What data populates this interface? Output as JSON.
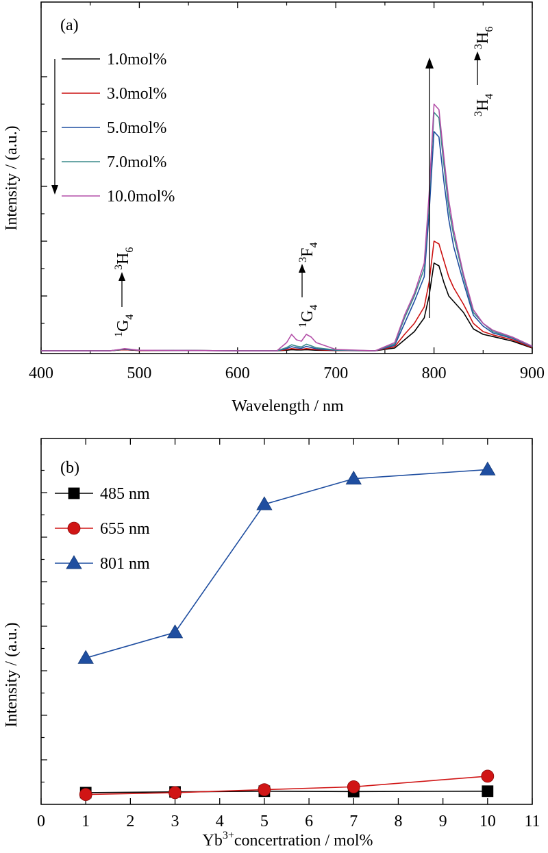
{
  "chart_data": [
    {
      "type": "line",
      "panel_label": "(a)",
      "xlabel": "Wavelength / nm",
      "ylabel": "Intensity / (a.u.)",
      "xlim": [
        400,
        900
      ],
      "xticks": [
        400,
        500,
        600,
        700,
        800,
        900
      ],
      "ylim": [
        0,
        1.0
      ],
      "y_tick_labels_shown": false,
      "legend_position": "top-left",
      "legend_arrow": "down",
      "series": [
        {
          "name": "1.0mol%",
          "color": "#000000",
          "x": [
            400,
            470,
            480,
            485,
            490,
            500,
            550,
            600,
            640,
            650,
            655,
            660,
            665,
            670,
            675,
            680,
            700,
            740,
            760,
            770,
            780,
            790,
            795,
            800,
            805,
            810,
            815,
            820,
            830,
            840,
            850,
            860,
            880,
            900
          ],
          "y": [
            0,
            0,
            0.003,
            0.004,
            0.003,
            0.001,
            0.001,
            0,
            0,
            0.002,
            0.004,
            0.003,
            0.003,
            0.004,
            0.003,
            0.002,
            0.001,
            0,
            0.01,
            0.04,
            0.07,
            0.12,
            0.2,
            0.32,
            0.31,
            0.25,
            0.2,
            0.18,
            0.14,
            0.08,
            0.06,
            0.052,
            0.035,
            0.01
          ]
        },
        {
          "name": "3.0mol%",
          "color": "#cc1111",
          "x": [
            400,
            470,
            480,
            485,
            490,
            500,
            550,
            600,
            640,
            650,
            655,
            660,
            665,
            670,
            675,
            680,
            700,
            740,
            760,
            770,
            780,
            790,
            795,
            800,
            805,
            810,
            815,
            820,
            830,
            840,
            850,
            860,
            880,
            900
          ],
          "y": [
            0,
            0,
            0.003,
            0.004,
            0.003,
            0.001,
            0.001,
            0,
            0,
            0.004,
            0.008,
            0.006,
            0.005,
            0.008,
            0.006,
            0.004,
            0.001,
            0,
            0.015,
            0.06,
            0.1,
            0.16,
            0.25,
            0.4,
            0.39,
            0.33,
            0.27,
            0.23,
            0.17,
            0.1,
            0.07,
            0.058,
            0.04,
            0.012
          ]
        },
        {
          "name": "5.0mol%",
          "color": "#1f4ea0",
          "x": [
            400,
            470,
            480,
            485,
            490,
            500,
            550,
            600,
            640,
            650,
            655,
            660,
            665,
            670,
            675,
            680,
            700,
            740,
            760,
            770,
            780,
            790,
            795,
            800,
            805,
            810,
            815,
            820,
            830,
            840,
            850,
            860,
            880,
            900
          ],
          "y": [
            0,
            0,
            0.004,
            0.006,
            0.004,
            0.002,
            0.001,
            0,
            0,
            0.008,
            0.015,
            0.011,
            0.009,
            0.016,
            0.012,
            0.007,
            0.002,
            0,
            0.02,
            0.1,
            0.18,
            0.27,
            0.5,
            0.8,
            0.78,
            0.62,
            0.48,
            0.38,
            0.25,
            0.13,
            0.09,
            0.065,
            0.045,
            0.015
          ]
        },
        {
          "name": "7.0mol%",
          "color": "#3a8a8a",
          "x": [
            400,
            470,
            480,
            485,
            490,
            500,
            550,
            600,
            640,
            650,
            655,
            660,
            665,
            670,
            675,
            680,
            700,
            740,
            760,
            770,
            780,
            790,
            795,
            800,
            805,
            810,
            815,
            820,
            830,
            840,
            850,
            860,
            880,
            900
          ],
          "y": [
            0,
            0,
            0.004,
            0.007,
            0.005,
            0.002,
            0.001,
            0,
            0,
            0.012,
            0.022,
            0.017,
            0.014,
            0.024,
            0.018,
            0.011,
            0.003,
            0,
            0.025,
            0.12,
            0.2,
            0.3,
            0.55,
            0.87,
            0.85,
            0.68,
            0.52,
            0.42,
            0.27,
            0.14,
            0.1,
            0.07,
            0.048,
            0.016
          ]
        },
        {
          "name": "10.0mol%",
          "color": "#b34fa8",
          "x": [
            400,
            470,
            480,
            485,
            490,
            500,
            550,
            600,
            640,
            650,
            655,
            660,
            665,
            670,
            675,
            680,
            700,
            740,
            760,
            770,
            780,
            790,
            795,
            800,
            805,
            810,
            815,
            820,
            830,
            840,
            850,
            860,
            880,
            900
          ],
          "y": [
            0,
            0,
            0.005,
            0.008,
            0.006,
            0.002,
            0.001,
            0,
            0,
            0.03,
            0.06,
            0.04,
            0.035,
            0.06,
            0.05,
            0.03,
            0.005,
            0,
            0.03,
            0.13,
            0.21,
            0.32,
            0.57,
            0.9,
            0.88,
            0.71,
            0.55,
            0.44,
            0.28,
            0.15,
            0.1,
            0.075,
            0.05,
            0.017
          ]
        }
      ],
      "annotations": {
        "t1": {
          "from": "G",
          "from_pre": "1",
          "from_sub": "4",
          "to": "H",
          "to_pre": "3",
          "to_sub": "6"
        },
        "t2": {
          "from": "G",
          "from_pre": "1",
          "from_sub": "4",
          "to": "F",
          "to_pre": "3",
          "to_sub": "4"
        },
        "t3": {
          "from": "H",
          "from_pre": "3",
          "from_sub": "4",
          "to": "H",
          "to_pre": "3",
          "to_sub": "6"
        }
      }
    },
    {
      "type": "line",
      "panel_label": "(b)",
      "xlabel_main": "Yb",
      "xlabel_sup": "3+",
      "xlabel_rest": "concertration / mol%",
      "ylabel": "Intensity / (a.u.)",
      "xlim": [
        0,
        11
      ],
      "xticks": [
        0,
        1,
        2,
        3,
        4,
        5,
        6,
        7,
        8,
        9,
        10,
        11
      ],
      "ylim": [
        0,
        1.0
      ],
      "y_tick_labels_shown": false,
      "legend_position": "top-left",
      "x": [
        1,
        3,
        5,
        7,
        10
      ],
      "series": [
        {
          "name": "485 nm",
          "color": "#000000",
          "marker": "square",
          "values": [
            0.032,
            0.034,
            0.036,
            0.035,
            0.036
          ]
        },
        {
          "name": "655 nm",
          "color": "#d01515",
          "marker": "circle",
          "values": [
            0.027,
            0.032,
            0.04,
            0.048,
            0.077
          ]
        },
        {
          "name": "801 nm",
          "color": "#1f4ea0",
          "marker": "triangle",
          "values": [
            0.4,
            0.47,
            0.82,
            0.89,
            0.915
          ]
        }
      ]
    }
  ]
}
